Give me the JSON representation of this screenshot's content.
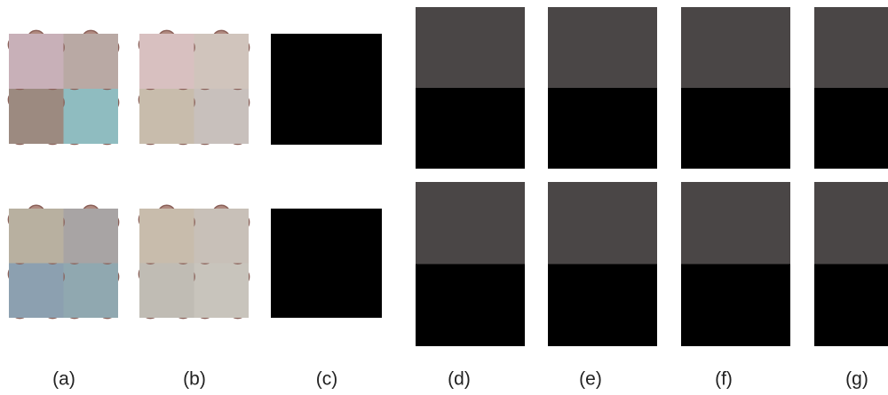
{
  "figure": {
    "panel_labels": [
      "(a)",
      "(b)",
      "(c)",
      "(d)",
      "(e)",
      "(f)",
      "(g)"
    ]
  }
}
